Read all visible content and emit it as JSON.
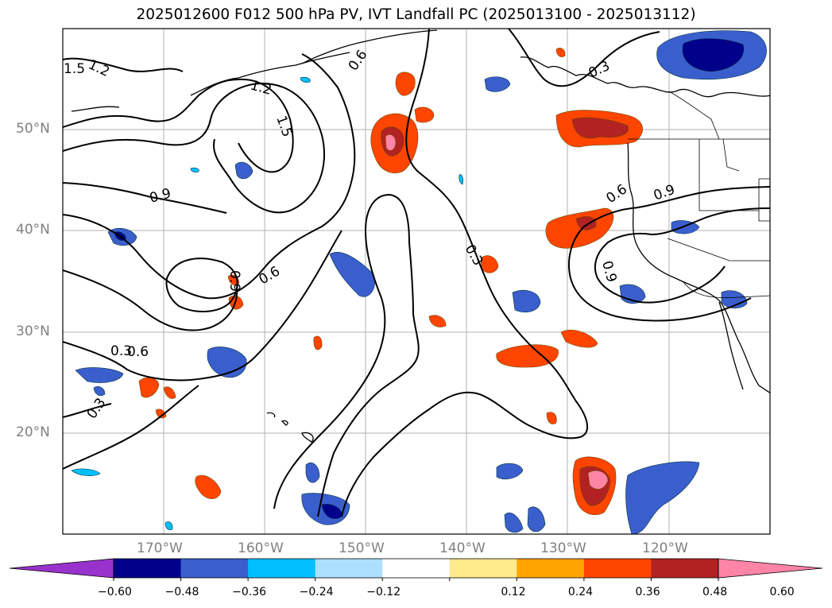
{
  "title": "2025012600 F012 500 hPa PV, IVT Landfall PC (2025013100 - 2025013112)",
  "map": {
    "extent": {
      "lon": [
        -180,
        -110
      ],
      "lat": [
        10,
        60
      ]
    },
    "lat_labels": [
      "50°N",
      "40°N",
      "30°N",
      "20°N"
    ],
    "lon_labels": [
      "170°W",
      "160°W",
      "150°W",
      "140°W",
      "130°W",
      "120°W"
    ],
    "contour_labels": [
      "1.5",
      "1.2",
      "1.2",
      "1.5",
      "0.6",
      "0.3",
      "0.9",
      "0.6",
      "0.9",
      "0.6",
      "0.3",
      "0.3",
      "0.3",
      "0.6",
      "0.9"
    ]
  },
  "colorbar": {
    "ticks": [
      "−0.60",
      "−0.48",
      "−0.36",
      "−0.24",
      "−0.12",
      "0.12",
      "0.24",
      "0.36",
      "0.48",
      "0.60"
    ],
    "colors": [
      "#9932CC",
      "#00008B",
      "#3A5FCD",
      "#00BFFF",
      "#ADDFFF",
      "#FFFFFF",
      "#FFEB8C",
      "#FFA500",
      "#FF4500",
      "#B22222",
      "#FF85A6"
    ]
  }
}
